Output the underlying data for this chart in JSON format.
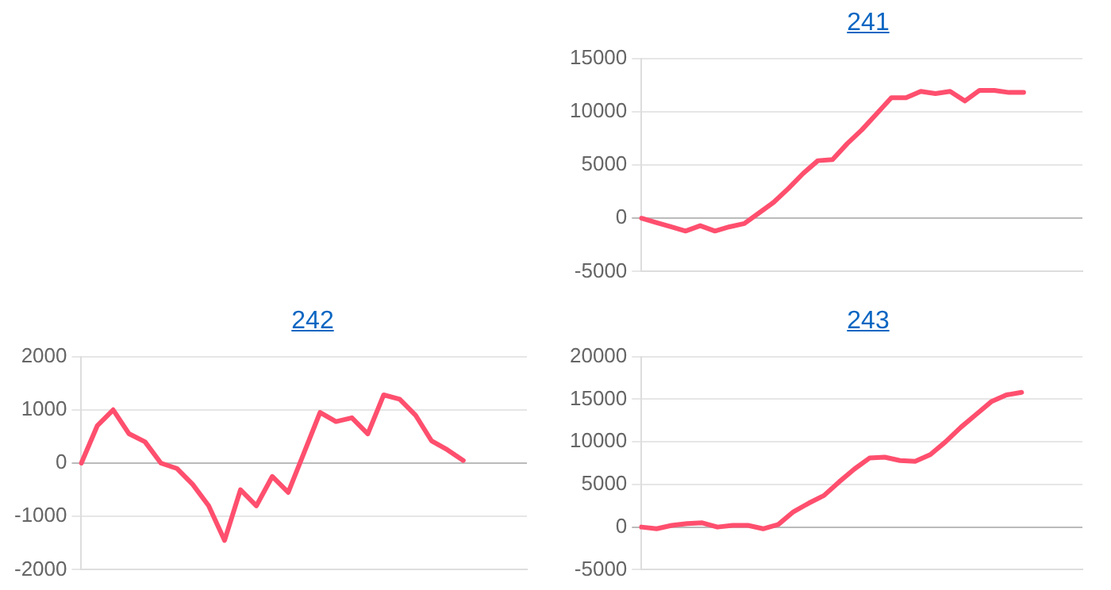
{
  "chart_data": [
    {
      "type": "line",
      "title": "241",
      "categories": [
        null,
        null,
        null,
        null,
        null,
        null,
        null,
        null,
        null,
        null,
        null,
        null,
        null,
        null,
        null,
        null,
        null,
        null,
        null,
        null,
        null,
        null,
        null,
        null,
        null,
        null,
        null,
        null,
        null,
        null,
        null
      ],
      "series": [
        {
          "color": "#ff4f6e",
          "values": [
            0,
            -400,
            -800,
            -1200,
            -700,
            -1200,
            -800,
            -500,
            500,
            1500,
            2800,
            4200,
            5400,
            5500,
            7000,
            8300,
            9800,
            11300,
            11300,
            11900,
            11700,
            11900,
            11000,
            12000,
            12000,
            11800,
            11800,
            null,
            null,
            null,
            null
          ]
        }
      ],
      "ylim": [
        -5000,
        15000
      ],
      "yticks": [
        -5000,
        0,
        5000,
        10000,
        15000
      ],
      "grid": "y",
      "legend": false,
      "tick_labels": "y",
      "marker": "none",
      "line_style": "solid"
    },
    {
      "type": "line",
      "title": "242",
      "categories": [
        null,
        null,
        null,
        null,
        null,
        null,
        null,
        null,
        null,
        null,
        null,
        null,
        null,
        null,
        null,
        null,
        null,
        null,
        null,
        null,
        null,
        null,
        null,
        null,
        null,
        null,
        null,
        null,
        null
      ],
      "series": [
        {
          "color": "#ff4f6e",
          "values": [
            0,
            700,
            1000,
            550,
            400,
            0,
            -100,
            -400,
            -800,
            -1450,
            -500,
            -800,
            -250,
            -550,
            200,
            950,
            780,
            850,
            550,
            1280,
            1200,
            900,
            420,
            250,
            50,
            null,
            null,
            null,
            null
          ]
        }
      ],
      "ylim": [
        -2000,
        2000
      ],
      "yticks": [
        -2000,
        -1000,
        0,
        1000,
        2000
      ],
      "grid": "y",
      "legend": false,
      "tick_labels": "y",
      "marker": "none",
      "line_style": "solid"
    },
    {
      "type": "line",
      "title": "243",
      "categories": [
        null,
        null,
        null,
        null,
        null,
        null,
        null,
        null,
        null,
        null,
        null,
        null,
        null,
        null,
        null,
        null,
        null,
        null,
        null,
        null,
        null,
        null,
        null,
        null,
        null,
        null,
        null,
        null,
        null,
        null
      ],
      "series": [
        {
          "color": "#ff4f6e",
          "values": [
            0,
            -200,
            200,
            400,
            500,
            0,
            200,
            200,
            -200,
            300,
            1800,
            2800,
            3700,
            5300,
            6800,
            8100,
            8200,
            7800,
            7700,
            8500,
            10000,
            11700,
            13200,
            14700,
            15500,
            15800,
            null,
            null,
            null,
            null
          ]
        }
      ],
      "ylim": [
        -5000,
        20000
      ],
      "yticks": [
        -5000,
        0,
        5000,
        10000,
        15000,
        20000
      ],
      "grid": "y",
      "legend": false,
      "tick_labels": "y",
      "marker": "none",
      "line_style": "solid"
    }
  ]
}
